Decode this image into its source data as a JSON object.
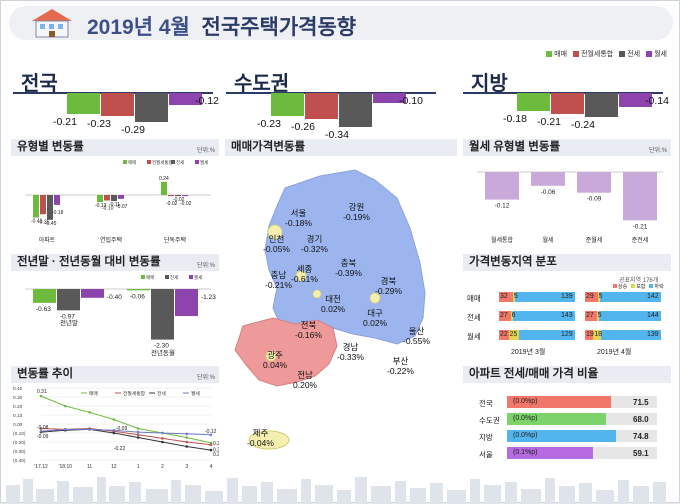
{
  "header": {
    "title_year": "2019년 4월",
    "title_main": "전국주택가격동향"
  },
  "colors": {
    "sale": "#6dbb3d",
    "jeonse_wolse": "#c0504d",
    "jeonse": "#595959",
    "wolse": "#8e44ad",
    "panel_bg": "#e9ecf2",
    "map_capital": "#ee9a9a",
    "map_region": "#9db5ee"
  },
  "legend_top": [
    "매매",
    "전월세통합",
    "전세",
    "월세"
  ],
  "regions": [
    {
      "name": "전국",
      "values": [
        -0.21,
        -0.23,
        -0.29,
        -0.12
      ],
      "labels": [
        "-0.21",
        "-0.23",
        "-0.29",
        "-0.12"
      ]
    },
    {
      "name": "수도권",
      "values": [
        -0.23,
        -0.26,
        -0.34,
        -0.1
      ],
      "labels": [
        "-0.23",
        "-0.26",
        "-0.34",
        "-0.10"
      ]
    },
    {
      "name": "지방",
      "values": [
        -0.18,
        -0.21,
        -0.24,
        -0.14
      ],
      "labels": [
        "-0.18",
        "-0.21",
        "-0.24",
        "-0.14"
      ]
    }
  ],
  "panels": {
    "type_change": {
      "title": "유형별 변동률",
      "unit": "단위:%",
      "legend": [
        "매매",
        "전월세통합",
        "전세",
        "월세"
      ],
      "categories": [
        "아파트",
        "연립주택",
        "단독주택"
      ],
      "values": [
        [
          -0.41,
          -0.35,
          -0.45,
          -0.18
        ],
        [
          -0.13,
          -0.1,
          -0.11,
          -0.07
        ],
        [
          0.24,
          -0.02,
          -0.02,
          -0.02
        ]
      ],
      "labels": [
        [
          "-0.41",
          "-0.35",
          "-0.45",
          "-0.18"
        ],
        [
          "-0.13",
          "-0.10",
          "-0.11",
          "-0.07"
        ],
        [
          "0.24",
          "-0.02",
          "-0.02",
          "-0.02"
        ]
      ]
    },
    "yoy_change": {
      "title": "전년말 · 전년동월 대비 변동률",
      "unit": "단위:%",
      "legend": [
        "매매",
        "전세",
        "월세"
      ],
      "categories": [
        "전년말",
        "전년동월"
      ],
      "values": [
        [
          -0.63,
          -0.97,
          -0.4
        ],
        [
          -0.06,
          -2.3,
          -1.23
        ]
      ],
      "labels": [
        [
          "-0.63",
          "-0.97",
          "-0.40"
        ],
        [
          "-0.06",
          "-2.30",
          "-1.23"
        ]
      ]
    },
    "trend": {
      "title": "변동률 추이",
      "unit": "단위:%",
      "legend": [
        "매매",
        "전월세통합",
        "전세",
        "월세"
      ],
      "x": [
        "'17.12",
        "'18.10",
        "11",
        "12",
        "1",
        "2",
        "3",
        "4"
      ],
      "yticks": [
        "0.40",
        "0.30",
        "0.20",
        "0.10",
        "0.00",
        "(0.10)",
        "(0.20)",
        "(0.30)",
        "(0.40)"
      ],
      "series": [
        {
          "values": [
            0.31,
            0.2,
            0.13,
            0.05,
            -0.05,
            -0.1,
            -0.15,
            -0.21
          ]
        },
        {
          "values": [
            -0.05,
            -0.06,
            -0.05,
            -0.08,
            -0.12,
            -0.16,
            -0.2,
            -0.23
          ]
        },
        {
          "values": [
            -0.09,
            -0.07,
            -0.06,
            -0.1,
            -0.15,
            -0.2,
            -0.25,
            -0.29
          ]
        },
        {
          "values": [
            -0.08,
            -0.06,
            -0.06,
            -0.07,
            -0.09,
            -0.1,
            -0.11,
            -0.12
          ]
        }
      ],
      "annotations": [
        "0.31",
        "-0.08",
        "-0.09",
        "-0.09",
        "-0.22",
        "-0.12",
        "0.21",
        "0.23",
        "0.29"
      ]
    },
    "map": {
      "title": "매매가격변동률",
      "labels": [
        {
          "name": "강원",
          "value": "-0.19%"
        },
        {
          "name": "서울",
          "value": "-0.18%"
        },
        {
          "name": "인천",
          "value": "-0.05%"
        },
        {
          "name": "경기",
          "value": "-0.32%"
        },
        {
          "name": "충북",
          "value": "-0.39%"
        },
        {
          "name": "세종",
          "value": "-0.61%"
        },
        {
          "name": "충남",
          "value": "-0.21%"
        },
        {
          "name": "대전",
          "value": "0.02%"
        },
        {
          "name": "경북",
          "value": "-0.29%"
        },
        {
          "name": "대구",
          "value": "0.02%"
        },
        {
          "name": "전북",
          "value": "-0.16%"
        },
        {
          "name": "울산",
          "value": "-0.55%"
        },
        {
          "name": "경남",
          "value": "-0.33%"
        },
        {
          "name": "광주",
          "value": "0.04%"
        },
        {
          "name": "부산",
          "value": "-0.22%"
        },
        {
          "name": "전남",
          "value": "0.20%"
        },
        {
          "name": "제주",
          "value": "-0.04%"
        }
      ]
    },
    "wolse_type": {
      "title": "월세 유형별 변동률",
      "unit": "단위:%",
      "categories": [
        "월세통합",
        "월세",
        "준월세",
        "준전세"
      ],
      "values": [
        -0.12,
        -0.06,
        -0.09,
        -0.21
      ],
      "labels": [
        "-0.12",
        "-0.06",
        "-0.09",
        "-0.21"
      ]
    },
    "distribution": {
      "title": "가격변동지역 분포",
      "note": "공표지역 176개",
      "legend": [
        "상승",
        "보합",
        "하락"
      ],
      "rows": [
        "매매",
        "전세",
        "월세"
      ],
      "months": [
        "2019년 3월",
        "2019년 4월"
      ],
      "data": [
        [
          {
            "up": "32",
            "flat": "5",
            "down": "139",
            "u": 32,
            "f": 5,
            "d": 139
          },
          {
            "up": "29",
            "flat": "5",
            "down": "142",
            "u": 29,
            "f": 5,
            "d": 142
          }
        ],
        [
          {
            "up": "27",
            "flat": "6",
            "down": "143",
            "u": 27,
            "f": 6,
            "d": 143
          },
          {
            "up": "27",
            "flat": "5",
            "down": "144",
            "u": 27,
            "f": 5,
            "d": 144
          }
        ],
        [
          {
            "up": "22",
            "flat": "25",
            "down": "129",
            "u": 22,
            "f": 25,
            "d": 129
          },
          {
            "up": "19",
            "flat": "18",
            "down": "139",
            "u": 19,
            "f": 18,
            "d": 139
          }
        ]
      ]
    },
    "ratio": {
      "title": "아파트 전세/매매 가격 비율",
      "rows": [
        {
          "name": "전국",
          "change": "(0.0%p)",
          "value": "71.5",
          "v": 71.5,
          "color": "#f0776a"
        },
        {
          "name": "수도권",
          "change": "(0.0%p)",
          "value": "68.0",
          "v": 68.0,
          "color": "#7bd36a"
        },
        {
          "name": "지방",
          "change": "(0.0%p)",
          "value": "74.8",
          "v": 74.8,
          "color": "#52b5ee"
        },
        {
          "name": "서울",
          "change": "(0.1%p)",
          "value": "59.1",
          "v": 59.1,
          "color": "#b66be0"
        }
      ]
    }
  }
}
